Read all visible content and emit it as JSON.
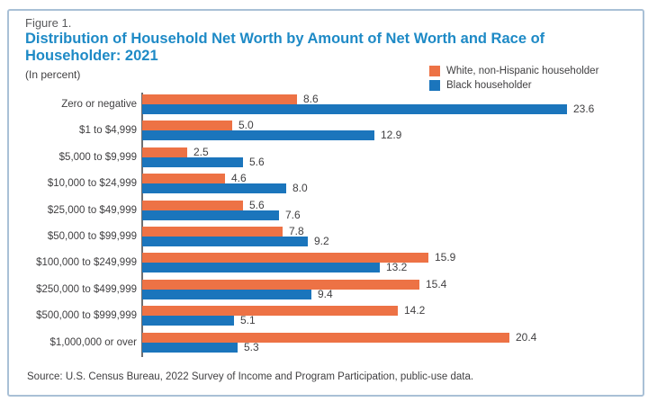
{
  "header": {
    "figure_label": "Figure 1.",
    "title_line1": "Distribution of Household Net Worth by Amount of Net Worth and Race of",
    "title_line2": "Householder: 2021",
    "subtitle": "(In percent)"
  },
  "footer": {
    "source": "Source: U.S. Census Bureau, 2022 Survey of Income and Program Participation, public-use data."
  },
  "colors": {
    "title_blue": "#1e8ac6",
    "border_blue": "#a9c0d6",
    "axis_gray": "#6d6e71",
    "text_gray": "#414042",
    "white_series_orange": "#ed7245",
    "black_series_blue": "#1b75bc"
  },
  "chart_data": {
    "type": "bar",
    "orientation": "horizontal",
    "title": "Distribution of Household Net Worth by Amount of Net Worth and Race of Householder: 2021",
    "subtitle": "(In percent)",
    "units": "percent",
    "xlim": [
      0,
      25
    ],
    "grid": false,
    "legend_position": "top-right",
    "value_labels": true,
    "categories": [
      "Zero or negative",
      "$1 to $4,999",
      "$5,000 to $9,999",
      "$10,000 to $24,999",
      "$25,000 to $49,999",
      "$50,000 to $99,999",
      "$100,000 to $249,999",
      "$250,000 to $499,999",
      "$500,000 to $999,999",
      "$1,000,000 or over"
    ],
    "series": [
      {
        "name": "White, non-Hispanic householder",
        "color": "#ed7245",
        "values": [
          8.6,
          5.0,
          2.5,
          4.6,
          5.6,
          7.8,
          15.9,
          15.4,
          14.2,
          20.4
        ]
      },
      {
        "name": "Black householder",
        "color": "#1b75bc",
        "values": [
          23.6,
          12.9,
          5.6,
          8.0,
          7.6,
          9.2,
          13.2,
          9.4,
          5.1,
          5.3
        ]
      }
    ]
  }
}
